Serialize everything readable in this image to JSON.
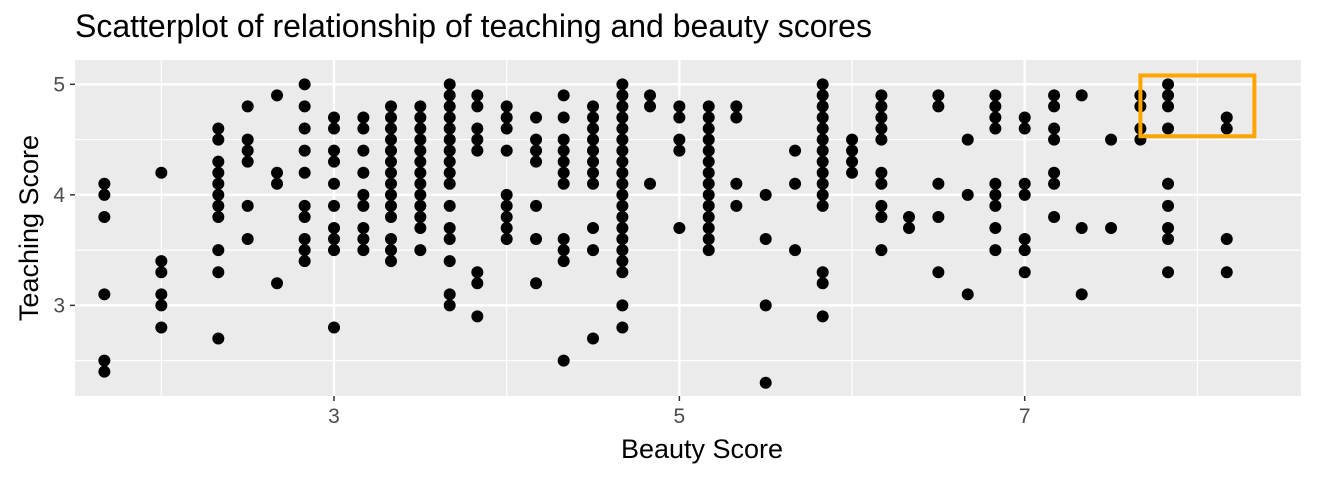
{
  "chart_data": {
    "type": "scatter",
    "title": "Scatterplot of relationship of teaching and beauty scores",
    "xlabel": "Beauty Score",
    "ylabel": "Teaching Score",
    "xlim": [
      1.5,
      8.6
    ],
    "ylim": [
      2.18,
      5.22
    ],
    "x_ticks": [
      3,
      5,
      7
    ],
    "y_ticks": [
      3,
      4,
      5
    ],
    "x_tick_labels": [
      "3",
      "5",
      "7"
    ],
    "y_tick_labels": [
      "3",
      "4",
      "5"
    ],
    "grid": true,
    "point_color": "#000000",
    "panel_background": "#ebebeb",
    "highlight": {
      "x_range": [
        7.67,
        8.33
      ],
      "y_range": [
        4.53,
        5.08
      ],
      "color": "#ffa500"
    },
    "points": [
      [
        1.67,
        4.1
      ],
      [
        1.67,
        4.0
      ],
      [
        1.67,
        3.8
      ],
      [
        1.67,
        3.1
      ],
      [
        1.67,
        2.5
      ],
      [
        1.67,
        2.4
      ],
      [
        2.0,
        4.2
      ],
      [
        2.0,
        3.4
      ],
      [
        2.0,
        3.3
      ],
      [
        2.0,
        3.1
      ],
      [
        2.0,
        3.0
      ],
      [
        2.0,
        2.8
      ],
      [
        2.33,
        4.6
      ],
      [
        2.33,
        4.5
      ],
      [
        2.33,
        4.3
      ],
      [
        2.33,
        4.2
      ],
      [
        2.33,
        4.1
      ],
      [
        2.33,
        4.0
      ],
      [
        2.33,
        3.9
      ],
      [
        2.33,
        3.8
      ],
      [
        2.33,
        3.5
      ],
      [
        2.33,
        3.3
      ],
      [
        2.33,
        2.7
      ],
      [
        2.5,
        4.8
      ],
      [
        2.5,
        4.5
      ],
      [
        2.5,
        4.4
      ],
      [
        2.5,
        4.3
      ],
      [
        2.5,
        3.9
      ],
      [
        2.5,
        3.6
      ],
      [
        2.67,
        4.9
      ],
      [
        2.67,
        4.2
      ],
      [
        2.67,
        4.1
      ],
      [
        2.67,
        3.2
      ],
      [
        2.83,
        5.0
      ],
      [
        2.83,
        4.8
      ],
      [
        2.83,
        4.6
      ],
      [
        2.83,
        4.4
      ],
      [
        2.83,
        4.2
      ],
      [
        2.83,
        3.9
      ],
      [
        2.83,
        3.8
      ],
      [
        2.83,
        3.6
      ],
      [
        2.83,
        3.5
      ],
      [
        2.83,
        3.4
      ],
      [
        3.0,
        4.7
      ],
      [
        3.0,
        4.6
      ],
      [
        3.0,
        4.4
      ],
      [
        3.0,
        4.3
      ],
      [
        3.0,
        4.1
      ],
      [
        3.0,
        3.9
      ],
      [
        3.0,
        3.7
      ],
      [
        3.0,
        3.6
      ],
      [
        3.0,
        3.5
      ],
      [
        3.0,
        2.8
      ],
      [
        3.17,
        4.7
      ],
      [
        3.17,
        4.6
      ],
      [
        3.17,
        4.4
      ],
      [
        3.17,
        4.2
      ],
      [
        3.17,
        4.0
      ],
      [
        3.17,
        3.9
      ],
      [
        3.17,
        3.7
      ],
      [
        3.17,
        3.6
      ],
      [
        3.17,
        3.5
      ],
      [
        3.33,
        4.8
      ],
      [
        3.33,
        4.7
      ],
      [
        3.33,
        4.6
      ],
      [
        3.33,
        4.5
      ],
      [
        3.33,
        4.4
      ],
      [
        3.33,
        4.3
      ],
      [
        3.33,
        4.2
      ],
      [
        3.33,
        4.1
      ],
      [
        3.33,
        4.0
      ],
      [
        3.33,
        3.9
      ],
      [
        3.33,
        3.8
      ],
      [
        3.33,
        3.6
      ],
      [
        3.33,
        3.5
      ],
      [
        3.33,
        3.4
      ],
      [
        3.5,
        4.8
      ],
      [
        3.5,
        4.7
      ],
      [
        3.5,
        4.6
      ],
      [
        3.5,
        4.5
      ],
      [
        3.5,
        4.4
      ],
      [
        3.5,
        4.3
      ],
      [
        3.5,
        4.2
      ],
      [
        3.5,
        4.1
      ],
      [
        3.5,
        4.0
      ],
      [
        3.5,
        3.9
      ],
      [
        3.5,
        3.8
      ],
      [
        3.5,
        3.7
      ],
      [
        3.5,
        3.5
      ],
      [
        3.67,
        5.0
      ],
      [
        3.67,
        4.9
      ],
      [
        3.67,
        4.8
      ],
      [
        3.67,
        4.7
      ],
      [
        3.67,
        4.6
      ],
      [
        3.67,
        4.5
      ],
      [
        3.67,
        4.4
      ],
      [
        3.67,
        4.3
      ],
      [
        3.67,
        4.2
      ],
      [
        3.67,
        4.1
      ],
      [
        3.67,
        3.9
      ],
      [
        3.67,
        3.7
      ],
      [
        3.67,
        3.6
      ],
      [
        3.67,
        3.4
      ],
      [
        3.67,
        3.1
      ],
      [
        3.67,
        3.0
      ],
      [
        3.83,
        4.9
      ],
      [
        3.83,
        4.8
      ],
      [
        3.83,
        4.6
      ],
      [
        3.83,
        4.5
      ],
      [
        3.83,
        4.4
      ],
      [
        3.83,
        3.3
      ],
      [
        3.83,
        3.2
      ],
      [
        3.83,
        2.9
      ],
      [
        4.0,
        4.8
      ],
      [
        4.0,
        4.7
      ],
      [
        4.0,
        4.6
      ],
      [
        4.0,
        4.4
      ],
      [
        4.0,
        4.0
      ],
      [
        4.0,
        3.9
      ],
      [
        4.0,
        3.8
      ],
      [
        4.0,
        3.7
      ],
      [
        4.0,
        3.6
      ],
      [
        4.17,
        4.7
      ],
      [
        4.17,
        4.5
      ],
      [
        4.17,
        4.4
      ],
      [
        4.17,
        4.3
      ],
      [
        4.17,
        3.9
      ],
      [
        4.17,
        3.6
      ],
      [
        4.17,
        3.2
      ],
      [
        4.33,
        4.9
      ],
      [
        4.33,
        4.7
      ],
      [
        4.33,
        4.5
      ],
      [
        4.33,
        4.4
      ],
      [
        4.33,
        4.3
      ],
      [
        4.33,
        4.2
      ],
      [
        4.33,
        4.1
      ],
      [
        4.33,
        3.6
      ],
      [
        4.33,
        3.5
      ],
      [
        4.33,
        3.4
      ],
      [
        4.33,
        2.5
      ],
      [
        4.5,
        4.8
      ],
      [
        4.5,
        4.7
      ],
      [
        4.5,
        4.6
      ],
      [
        4.5,
        4.5
      ],
      [
        4.5,
        4.4
      ],
      [
        4.5,
        4.3
      ],
      [
        4.5,
        4.2
      ],
      [
        4.5,
        4.1
      ],
      [
        4.5,
        3.7
      ],
      [
        4.5,
        3.5
      ],
      [
        4.5,
        2.7
      ],
      [
        4.67,
        5.0
      ],
      [
        4.67,
        4.9
      ],
      [
        4.67,
        4.8
      ],
      [
        4.67,
        4.7
      ],
      [
        4.67,
        4.6
      ],
      [
        4.67,
        4.5
      ],
      [
        4.67,
        4.4
      ],
      [
        4.67,
        4.3
      ],
      [
        4.67,
        4.2
      ],
      [
        4.67,
        4.1
      ],
      [
        4.67,
        4.0
      ],
      [
        4.67,
        3.9
      ],
      [
        4.67,
        3.8
      ],
      [
        4.67,
        3.7
      ],
      [
        4.67,
        3.6
      ],
      [
        4.67,
        3.5
      ],
      [
        4.67,
        3.4
      ],
      [
        4.67,
        3.3
      ],
      [
        4.67,
        3.0
      ],
      [
        4.67,
        2.8
      ],
      [
        4.83,
        4.9
      ],
      [
        4.83,
        4.8
      ],
      [
        4.83,
        4.1
      ],
      [
        5.0,
        4.8
      ],
      [
        5.0,
        4.7
      ],
      [
        5.0,
        4.5
      ],
      [
        5.0,
        4.4
      ],
      [
        5.0,
        3.7
      ],
      [
        5.17,
        4.8
      ],
      [
        5.17,
        4.7
      ],
      [
        5.17,
        4.6
      ],
      [
        5.17,
        4.5
      ],
      [
        5.17,
        4.4
      ],
      [
        5.17,
        4.3
      ],
      [
        5.17,
        4.2
      ],
      [
        5.17,
        4.1
      ],
      [
        5.17,
        4.0
      ],
      [
        5.17,
        3.9
      ],
      [
        5.17,
        3.8
      ],
      [
        5.17,
        3.7
      ],
      [
        5.17,
        3.6
      ],
      [
        5.17,
        3.5
      ],
      [
        5.33,
        4.8
      ],
      [
        5.33,
        4.7
      ],
      [
        5.33,
        4.1
      ],
      [
        5.33,
        3.9
      ],
      [
        5.5,
        4.0
      ],
      [
        5.5,
        3.6
      ],
      [
        5.5,
        3.0
      ],
      [
        5.5,
        2.3
      ],
      [
        5.67,
        4.4
      ],
      [
        5.67,
        4.1
      ],
      [
        5.67,
        3.5
      ],
      [
        5.83,
        5.0
      ],
      [
        5.83,
        4.9
      ],
      [
        5.83,
        4.8
      ],
      [
        5.83,
        4.7
      ],
      [
        5.83,
        4.6
      ],
      [
        5.83,
        4.5
      ],
      [
        5.83,
        4.4
      ],
      [
        5.83,
        4.3
      ],
      [
        5.83,
        4.2
      ],
      [
        5.83,
        4.1
      ],
      [
        5.83,
        4.0
      ],
      [
        5.83,
        3.9
      ],
      [
        5.83,
        3.3
      ],
      [
        5.83,
        3.2
      ],
      [
        5.83,
        2.9
      ],
      [
        6.0,
        4.5
      ],
      [
        6.0,
        4.4
      ],
      [
        6.0,
        4.3
      ],
      [
        6.0,
        4.2
      ],
      [
        6.17,
        4.9
      ],
      [
        6.17,
        4.8
      ],
      [
        6.17,
        4.7
      ],
      [
        6.17,
        4.6
      ],
      [
        6.17,
        4.5
      ],
      [
        6.17,
        4.2
      ],
      [
        6.17,
        4.1
      ],
      [
        6.17,
        3.9
      ],
      [
        6.17,
        3.8
      ],
      [
        6.17,
        3.5
      ],
      [
        6.33,
        3.8
      ],
      [
        6.33,
        3.7
      ],
      [
        6.5,
        4.9
      ],
      [
        6.5,
        4.8
      ],
      [
        6.5,
        4.1
      ],
      [
        6.5,
        3.8
      ],
      [
        6.5,
        3.3
      ],
      [
        6.67,
        4.5
      ],
      [
        6.67,
        4.0
      ],
      [
        6.67,
        3.1
      ],
      [
        6.83,
        4.9
      ],
      [
        6.83,
        4.8
      ],
      [
        6.83,
        4.7
      ],
      [
        6.83,
        4.6
      ],
      [
        6.83,
        4.1
      ],
      [
        6.83,
        4.0
      ],
      [
        6.83,
        3.9
      ],
      [
        6.83,
        3.7
      ],
      [
        6.83,
        3.5
      ],
      [
        7.0,
        4.7
      ],
      [
        7.0,
        4.6
      ],
      [
        7.0,
        4.1
      ],
      [
        7.0,
        4.0
      ],
      [
        7.0,
        3.6
      ],
      [
        7.0,
        3.5
      ],
      [
        7.0,
        3.3
      ],
      [
        7.17,
        4.9
      ],
      [
        7.17,
        4.8
      ],
      [
        7.17,
        4.6
      ],
      [
        7.17,
        4.5
      ],
      [
        7.17,
        4.2
      ],
      [
        7.17,
        4.1
      ],
      [
        7.17,
        3.8
      ],
      [
        7.33,
        4.9
      ],
      [
        7.33,
        3.7
      ],
      [
        7.33,
        3.1
      ],
      [
        7.5,
        4.5
      ],
      [
        7.5,
        3.7
      ],
      [
        7.67,
        4.9
      ],
      [
        7.67,
        4.8
      ],
      [
        7.67,
        4.6
      ],
      [
        7.67,
        4.5
      ],
      [
        7.83,
        5.0
      ],
      [
        7.83,
        4.9
      ],
      [
        7.83,
        4.8
      ],
      [
        7.83,
        4.6
      ],
      [
        7.83,
        4.1
      ],
      [
        7.83,
        3.9
      ],
      [
        7.83,
        3.7
      ],
      [
        7.83,
        3.6
      ],
      [
        7.83,
        3.3
      ],
      [
        8.17,
        4.7
      ],
      [
        8.17,
        4.6
      ],
      [
        8.17,
        3.6
      ],
      [
        8.17,
        3.3
      ]
    ]
  }
}
